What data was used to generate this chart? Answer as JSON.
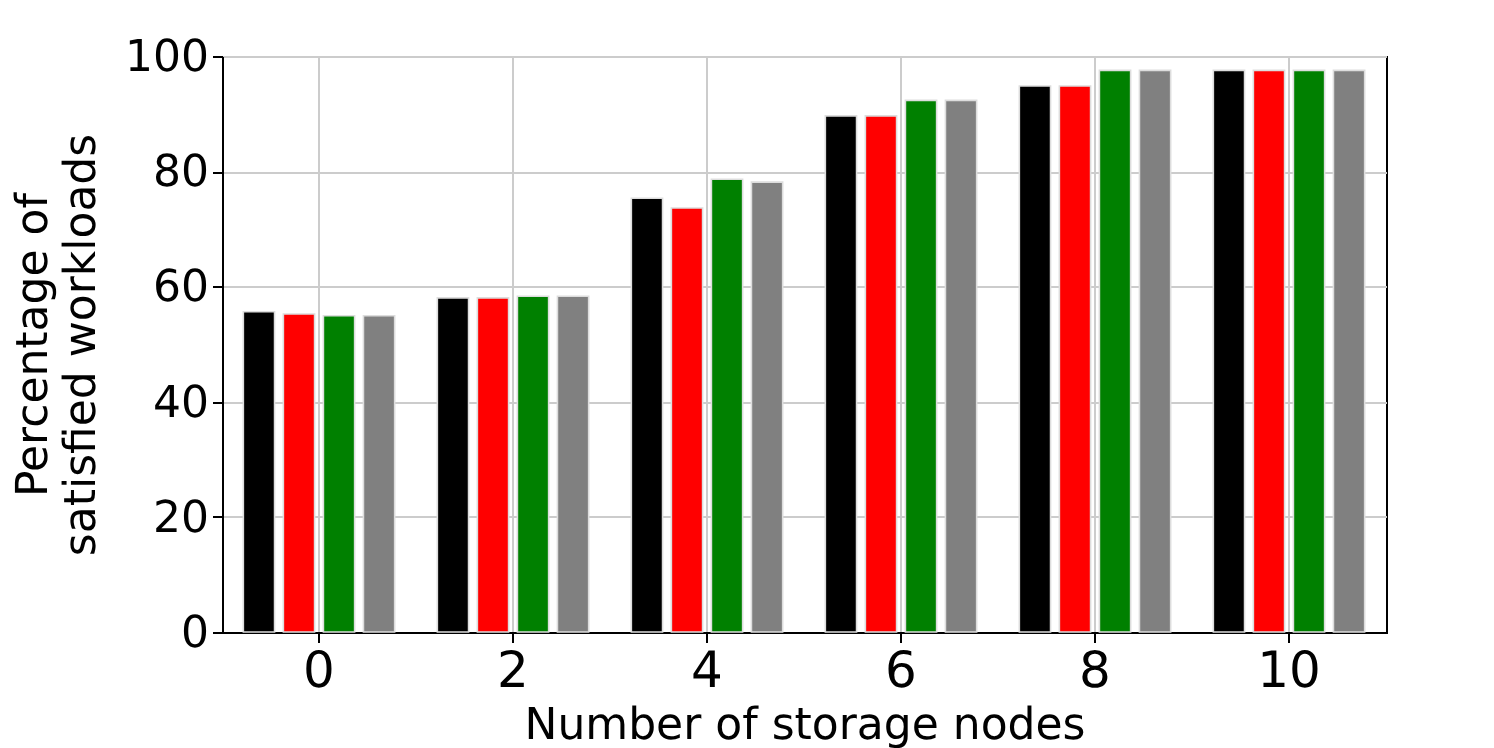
{
  "chart_data": {
    "type": "bar",
    "xlabel": "Number of storage nodes",
    "ylabel": "Percentage of\nsatisfied workloads",
    "categories": [
      "0",
      "2",
      "4",
      "6",
      "8",
      "10"
    ],
    "series": [
      {
        "color": "#000000",
        "values": [
          55.6,
          58.0,
          75.3,
          89.6,
          94.8,
          97.5
        ]
      },
      {
        "color": "#ff0000",
        "values": [
          55.2,
          58.0,
          73.6,
          89.6,
          94.8,
          97.5
        ]
      },
      {
        "color": "#008000",
        "values": [
          54.9,
          58.3,
          78.6,
          92.3,
          97.5,
          97.5
        ]
      },
      {
        "color": "#808080",
        "values": [
          54.9,
          58.3,
          78.1,
          92.3,
          97.5,
          97.5
        ]
      }
    ],
    "ylim": [
      0,
      100
    ],
    "yticks": [
      0,
      20,
      40,
      60,
      80,
      100
    ],
    "grid": true
  }
}
